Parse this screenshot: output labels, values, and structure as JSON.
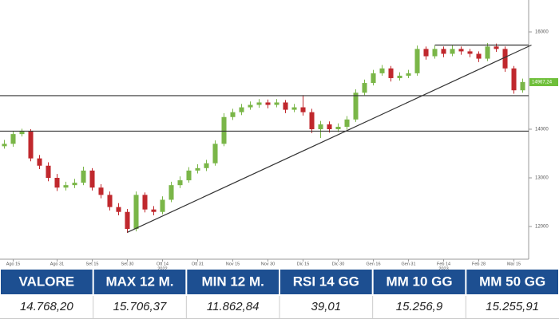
{
  "chart_data": {
    "type": "candlestick",
    "open": [
      13650,
      13700,
      13900,
      13950,
      13400,
      13250,
      13000,
      12800,
      12850,
      12900,
      13150,
      12800,
      12650,
      12400,
      12300,
      11950,
      12650,
      12350,
      12300,
      12550,
      12850,
      12950,
      13150,
      13200,
      13300,
      13700,
      14250,
      14350,
      14450,
      14500,
      14550,
      14500,
      14550,
      14400,
      14450,
      14350,
      14000,
      14100,
      14000,
      14050,
      14200,
      14750,
      14950,
      15150,
      15250,
      15050,
      15100,
      15150,
      15650,
      15500,
      15650,
      15550,
      15650,
      15600,
      15550,
      15450,
      15700,
      15650,
      15250,
      14800
    ],
    "high": [
      13780,
      13960,
      14010,
      14000,
      13470,
      13320,
      13080,
      12920,
      12980,
      13230,
      13200,
      12870,
      12720,
      12480,
      12360,
      12720,
      12700,
      12420,
      12620,
      12920,
      13030,
      13220,
      13280,
      13370,
      13770,
      14330,
      14420,
      14520,
      14570,
      14620,
      14610,
      14620,
      14600,
      14520,
      14700,
      14420,
      14170,
      14160,
      14120,
      14270,
      14820,
      15020,
      15220,
      15320,
      15300,
      15170,
      15220,
      15720,
      15700,
      15720,
      15700,
      15720,
      15700,
      15650,
      15600,
      15770,
      15760,
      15700,
      15300,
      15040
    ],
    "low": [
      13600,
      13640,
      13850,
      13340,
      13180,
      12930,
      12730,
      12740,
      12790,
      12850,
      12740,
      12580,
      12330,
      12230,
      11870,
      11900,
      12290,
      12230,
      12250,
      12500,
      12790,
      12900,
      13090,
      13140,
      13250,
      13650,
      14190,
      14290,
      14400,
      14440,
      14430,
      14450,
      14330,
      14350,
      14280,
      13920,
      13820,
      13930,
      13940,
      13990,
      14150,
      14700,
      14900,
      15100,
      14980,
      15000,
      15050,
      15100,
      15430,
      15450,
      15480,
      15500,
      15530,
      15480,
      15380,
      15400,
      15590,
      15180,
      14730,
      14750
    ],
    "close": [
      13700,
      13900,
      13950,
      13400,
      13250,
      13000,
      12800,
      12850,
      12900,
      13150,
      12800,
      12650,
      12400,
      12300,
      11950,
      12650,
      12350,
      12300,
      12550,
      12850,
      12950,
      13150,
      13200,
      13300,
      13700,
      14250,
      14350,
      14450,
      14500,
      14550,
      14500,
      14550,
      14400,
      14450,
      14350,
      14000,
      14100,
      14000,
      14050,
      14200,
      14750,
      14950,
      15150,
      15250,
      15050,
      15100,
      15150,
      15650,
      15500,
      15650,
      15550,
      15650,
      15600,
      15550,
      15450,
      15700,
      15650,
      15250,
      14800,
      14970
    ],
    "up_color": "#7ab648",
    "down_color": "#c0282d",
    "xlim": [
      -0.5,
      59.68
    ],
    "xticks": [
      {
        "value": 1,
        "label": "Ago 15"
      },
      {
        "value": 6,
        "label": "Ago 31"
      },
      {
        "value": 10,
        "label": "Set 15"
      },
      {
        "value": 14,
        "label": "Set 30"
      },
      {
        "value": 18,
        "label": "Ott 14",
        "year": "2022"
      },
      {
        "value": 22,
        "label": "Ott 31"
      },
      {
        "value": 26,
        "label": "Nov 15"
      },
      {
        "value": 30,
        "label": "Nov 30"
      },
      {
        "value": 34,
        "label": "Dic 15"
      },
      {
        "value": 38,
        "label": "Dic 30"
      },
      {
        "value": 42,
        "label": "Gen 16"
      },
      {
        "value": 46,
        "label": "Gen 31"
      },
      {
        "value": 50,
        "label": "Feb 14",
        "year": "2023"
      },
      {
        "value": 54,
        "label": "Feb 28"
      },
      {
        "value": 58,
        "label": "Mar 15"
      }
    ],
    "ylim": [
      11328,
      16656
    ],
    "yticks": [
      12000,
      13000,
      14000,
      16000
    ],
    "levels": [
      {
        "y": 13960
      },
      {
        "y": 14690
      },
      {
        "y": 15730,
        "x": [
          49,
          59.68
        ]
      }
    ],
    "trendline": {
      "x": [
        14,
        60
      ],
      "y": [
        11880,
        15730
      ]
    },
    "last_price": {
      "value": 14967.24,
      "label": "14967,24"
    }
  },
  "table": {
    "header": [
      "VALORE",
      "MAX 12 M.",
      "MIN 12 M.",
      "RSI 14 GG",
      "MM 10 GG",
      "MM 50 GG"
    ],
    "values": [
      "14.768,20",
      "15.706,37",
      "11.862,84",
      "39,01",
      "15.256,9",
      "15.255,91"
    ]
  }
}
